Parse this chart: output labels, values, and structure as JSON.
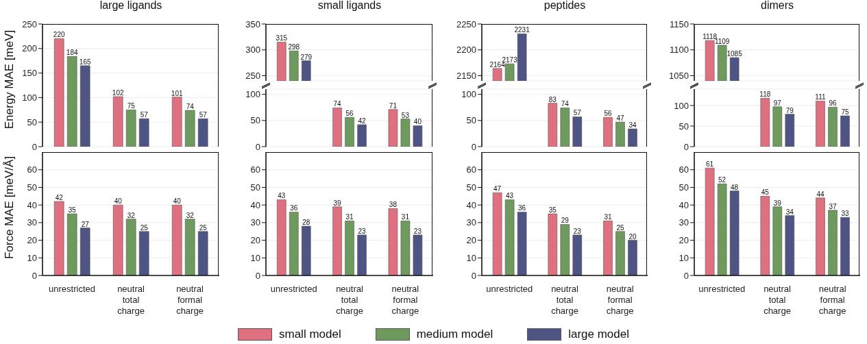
{
  "chart_data": [
    {
      "type": "bar",
      "title": "large ligands",
      "ylabel": "Energy MAE [meV]",
      "categories": [
        null,
        null,
        null
      ],
      "series": [
        {
          "name": "small model",
          "color": "#de7080",
          "values": [
            220,
            102,
            101
          ]
        },
        {
          "name": "medium model",
          "color": "#6e9a5e",
          "values": [
            184,
            75,
            74
          ]
        },
        {
          "name": "large model",
          "color": "#4e5585",
          "values": [
            165,
            57,
            57
          ]
        }
      ],
      "ylim": [
        0,
        250
      ],
      "yticks": [
        0,
        50,
        100,
        150,
        200,
        250
      ],
      "grid": "y",
      "data_labels": true,
      "tick_labels": "y",
      "legend": "bottom"
    },
    {
      "type": "bar",
      "title": "small ligands",
      "categories": [
        null,
        null,
        null
      ],
      "series": [
        {
          "color": "#de7080",
          "values": [
            315,
            null,
            null
          ]
        },
        {
          "color": "#6e9a5e",
          "values": [
            298,
            null,
            null
          ]
        },
        {
          "color": "#4e5585",
          "values": [
            279,
            null,
            null
          ]
        }
      ],
      "ylim": [
        240,
        350
      ],
      "yticks": [
        250,
        300,
        350
      ],
      "grid": "y",
      "data_labels": true,
      "tick_labels": "y"
    },
    {
      "type": "bar",
      "categories": [
        null,
        null,
        null
      ],
      "series": [
        {
          "color": "#de7080",
          "values": [
            null,
            74,
            71
          ]
        },
        {
          "color": "#6e9a5e",
          "values": [
            null,
            56,
            53
          ]
        },
        {
          "color": "#4e5585",
          "values": [
            null,
            42,
            40
          ]
        }
      ],
      "ylim": [
        0,
        110
      ],
      "yticks": [
        0,
        50,
        100
      ],
      "grid": "y",
      "data_labels": true,
      "tick_labels": "y"
    },
    {
      "type": "bar",
      "title": "peptides",
      "categories": [
        null,
        null,
        null
      ],
      "series": [
        {
          "color": "#de7080",
          "values": [
            2164,
            null,
            null
          ]
        },
        {
          "color": "#6e9a5e",
          "values": [
            2173,
            null,
            null
          ]
        },
        {
          "color": "#4e5585",
          "values": [
            2231,
            null,
            null
          ]
        }
      ],
      "ylim": [
        2140,
        2250
      ],
      "yticks": [
        2150,
        2200,
        2250
      ],
      "grid": "y",
      "data_labels": true,
      "tick_labels": "y"
    },
    {
      "type": "bar",
      "categories": [
        null,
        null,
        null
      ],
      "series": [
        {
          "color": "#de7080",
          "values": [
            null,
            83,
            56
          ]
        },
        {
          "color": "#6e9a5e",
          "values": [
            null,
            74,
            47
          ]
        },
        {
          "color": "#4e5585",
          "values": [
            null,
            57,
            34
          ]
        }
      ],
      "ylim": [
        0,
        110
      ],
      "yticks": [
        0,
        50,
        100
      ],
      "grid": "y",
      "data_labels": true,
      "tick_labels": "y"
    },
    {
      "type": "bar",
      "title": "dimers",
      "categories": [
        null,
        null,
        null
      ],
      "series": [
        {
          "color": "#de7080",
          "values": [
            1118,
            null,
            null
          ]
        },
        {
          "color": "#6e9a5e",
          "values": [
            1109,
            null,
            null
          ]
        },
        {
          "color": "#4e5585",
          "values": [
            1085,
            null,
            null
          ]
        }
      ],
      "ylim": [
        1040,
        1150
      ],
      "yticks": [
        1050,
        1100,
        1150
      ],
      "grid": "y",
      "data_labels": true,
      "tick_labels": "y"
    },
    {
      "type": "bar",
      "categories": [
        null,
        null,
        null
      ],
      "series": [
        {
          "color": "#de7080",
          "values": [
            null,
            118,
            111
          ]
        },
        {
          "color": "#6e9a5e",
          "values": [
            null,
            97,
            96
          ]
        },
        {
          "color": "#4e5585",
          "values": [
            null,
            79,
            75
          ]
        }
      ],
      "ylim": [
        0,
        140
      ],
      "yticks": [
        0,
        50,
        100
      ],
      "grid": "y",
      "data_labels": true,
      "tick_labels": "y"
    },
    {
      "type": "bar",
      "ylabel": "Force MAE [meV/Å]",
      "categories": [
        "unrestricted",
        "neutral total charge",
        "neutral formal charge"
      ],
      "series": [
        {
          "color": "#de7080",
          "values": [
            42,
            40,
            40
          ]
        },
        {
          "color": "#6e9a5e",
          "values": [
            35,
            32,
            32
          ]
        },
        {
          "color": "#4e5585",
          "values": [
            27,
            25,
            25
          ]
        }
      ],
      "ylim": [
        0,
        70
      ],
      "yticks": [
        0,
        10,
        20,
        30,
        40,
        50,
        60
      ],
      "grid": "y",
      "data_labels": true
    },
    {
      "type": "bar",
      "categories": [
        "unrestricted",
        "neutral total charge",
        "neutral formal charge"
      ],
      "series": [
        {
          "color": "#de7080",
          "values": [
            43,
            39,
            38
          ]
        },
        {
          "color": "#6e9a5e",
          "values": [
            36,
            31,
            31
          ]
        },
        {
          "color": "#4e5585",
          "values": [
            28,
            23,
            23
          ]
        }
      ],
      "ylim": [
        0,
        70
      ],
      "yticks": [
        0,
        10,
        20,
        30,
        40,
        50,
        60
      ],
      "grid": "y",
      "data_labels": true
    },
    {
      "type": "bar",
      "categories": [
        "unrestricted",
        "neutral total charge",
        "neutral formal charge"
      ],
      "series": [
        {
          "color": "#de7080",
          "values": [
            47,
            35,
            31
          ]
        },
        {
          "color": "#6e9a5e",
          "values": [
            43,
            29,
            25
          ]
        },
        {
          "color": "#4e5585",
          "values": [
            36,
            23,
            20
          ]
        }
      ],
      "ylim": [
        0,
        70
      ],
      "yticks": [
        0,
        10,
        20,
        30,
        40,
        50,
        60
      ],
      "grid": "y",
      "data_labels": true
    },
    {
      "type": "bar",
      "categories": [
        "unrestricted",
        "neutral total charge",
        "neutral formal charge"
      ],
      "series": [
        {
          "color": "#de7080",
          "values": [
            61,
            45,
            44
          ]
        },
        {
          "color": "#6e9a5e",
          "values": [
            52,
            39,
            37
          ]
        },
        {
          "color": "#4e5585",
          "values": [
            48,
            34,
            33
          ]
        }
      ],
      "ylim": [
        0,
        70
      ],
      "yticks": [
        0,
        10,
        20,
        30,
        40,
        50,
        60
      ],
      "grid": "y",
      "data_labels": true
    }
  ]
}
